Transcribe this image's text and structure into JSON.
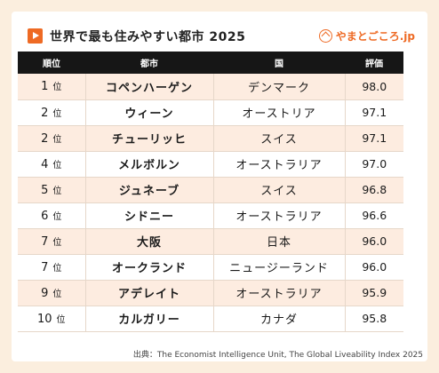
{
  "header": {
    "title": "世界で最も住みやすい都市 2025",
    "brand": "やまとごころ.jp"
  },
  "table": {
    "columns": [
      "順位",
      "都市",
      "国",
      "評価"
    ],
    "rows": [
      {
        "rank": "1",
        "unit": "位",
        "city": "コペンハーゲン",
        "country": "デンマーク",
        "score": "98.0"
      },
      {
        "rank": "2",
        "unit": "位",
        "city": "ウィーン",
        "country": "オーストリア",
        "score": "97.1"
      },
      {
        "rank": "2",
        "unit": "位",
        "city": "チューリッヒ",
        "country": "スイス",
        "score": "97.1"
      },
      {
        "rank": "4",
        "unit": "位",
        "city": "メルボルン",
        "country": "オーストラリア",
        "score": "97.0"
      },
      {
        "rank": "5",
        "unit": "位",
        "city": "ジュネーブ",
        "country": "スイス",
        "score": "96.8"
      },
      {
        "rank": "6",
        "unit": "位",
        "city": "シドニー",
        "country": "オーストラリア",
        "score": "96.6"
      },
      {
        "rank": "7",
        "unit": "位",
        "city": "大阪",
        "country": "日本",
        "score": "96.0"
      },
      {
        "rank": "7",
        "unit": "位",
        "city": "オークランド",
        "country": "ニュージーランド",
        "score": "96.0"
      },
      {
        "rank": "9",
        "unit": "位",
        "city": "アデレイト",
        "country": "オーストラリア",
        "score": "95.9"
      },
      {
        "rank": "10",
        "unit": "位",
        "city": "カルガリー",
        "country": "カナダ",
        "score": "95.8"
      }
    ]
  },
  "source": "出典：The Economist Intelligence Unit, The Global Liveability Index 2025",
  "colors": {
    "accent": "#ee6a24",
    "header_bg": "#161616",
    "stripe": "#fdece0",
    "page_bg": "#fbeede"
  },
  "icons": {
    "title_mark": "play-triangle-icon",
    "brand_logo": "yamatogokoro-logo-icon"
  }
}
